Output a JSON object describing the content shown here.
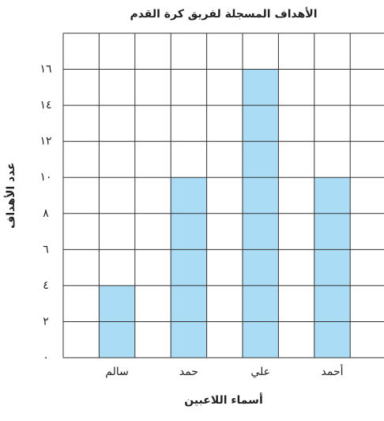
{
  "chart_data": {
    "type": "bar",
    "title": "الأهداف المسجلة لفريق كرة القدم",
    "x_label": "أسماء اللاعبين",
    "y_label": "عدد الأهداف",
    "categories": [
      "سالم",
      "حمد",
      "علي",
      "أحمد"
    ],
    "values": [
      4,
      10,
      16,
      10
    ],
    "color": "#aadcf5",
    "ylim": [
      0,
      18
    ],
    "yticks": [
      {
        "value": 0,
        "label": "٠"
      },
      {
        "value": 2,
        "label": "٢"
      },
      {
        "value": 4,
        "label": "٤"
      },
      {
        "value": 6,
        "label": "٦"
      },
      {
        "value": 8,
        "label": "٨"
      },
      {
        "value": 10,
        "label": "١٠"
      },
      {
        "value": 12,
        "label": "١٢"
      },
      {
        "value": 14,
        "label": "١٤"
      },
      {
        "value": 16,
        "label": "١٦"
      }
    ],
    "grid": true
  }
}
